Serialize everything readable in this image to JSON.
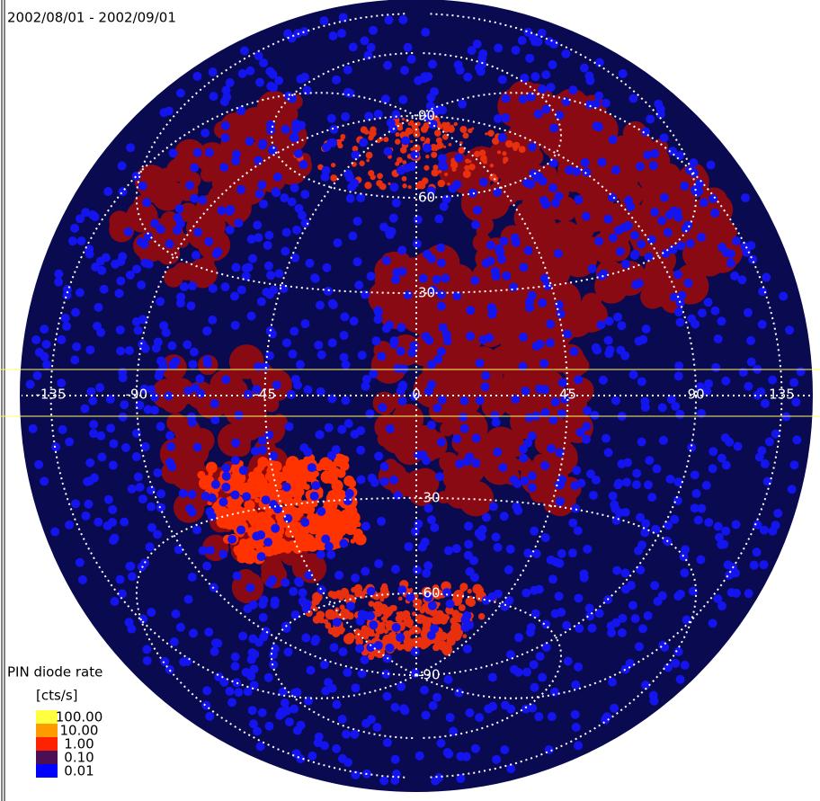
{
  "title": "2002/08/01 - 2002/09/01",
  "legend": {
    "title": "PIN diode rate",
    "unit": "[cts/s]",
    "items": [
      {
        "label": "100.00",
        "color": "#ffff40"
      },
      {
        "label": "10.00",
        "color": "#ff9a00"
      },
      {
        "label": "1.00",
        "color": "#ff2200"
      },
      {
        "label": "0.10",
        "color": "#4c0f55"
      },
      {
        "label": "0.01",
        "color": "#0000ff"
      }
    ]
  },
  "meridians": [
    -135,
    -90,
    -45,
    0,
    45,
    90,
    135
  ],
  "parallels": [
    90,
    60,
    30,
    -30,
    -60,
    -90
  ]
}
